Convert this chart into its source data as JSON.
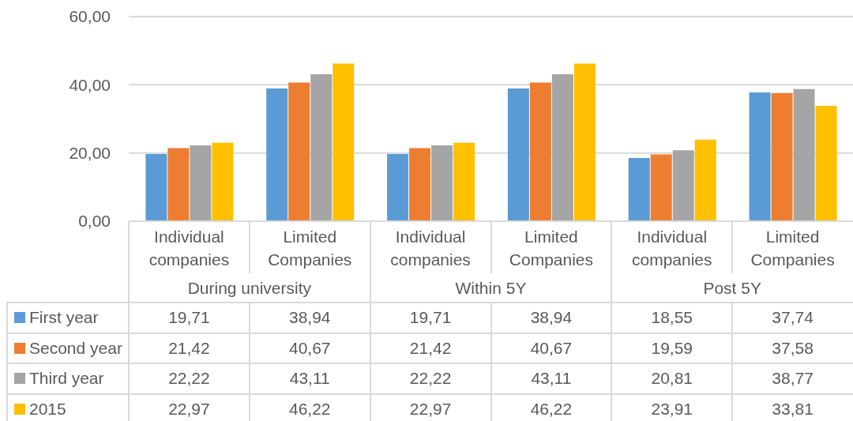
{
  "chart_data": {
    "type": "bar",
    "categories": [
      "Individual companies",
      "Limited Companies",
      "Individual companies",
      "Limited Companies",
      "Individual companies",
      "Limited Companies"
    ],
    "series": [
      {
        "name": "First year",
        "color": "#5b9bd5",
        "values": [
          19.71,
          38.94,
          19.71,
          38.94,
          18.55,
          37.74
        ],
        "value_labels": [
          "19,71",
          "38,94",
          "19,71",
          "38,94",
          "18,55",
          "37,74"
        ]
      },
      {
        "name": "Second year",
        "color": "#ed7d31",
        "values": [
          21.42,
          40.67,
          21.42,
          40.67,
          19.59,
          37.58
        ],
        "value_labels": [
          "21,42",
          "40,67",
          "21,42",
          "40,67",
          "19,59",
          "37,58"
        ]
      },
      {
        "name": "Third year",
        "color": "#a5a5a5",
        "values": [
          22.22,
          43.11,
          22.22,
          43.11,
          20.81,
          38.77
        ],
        "value_labels": [
          "22,22",
          "43,11",
          "22,22",
          "43,11",
          "20,81",
          "38,77"
        ]
      },
      {
        "name": "2015",
        "color": "#ffc000",
        "values": [
          22.97,
          46.22,
          22.97,
          46.22,
          23.91,
          33.81
        ],
        "value_labels": [
          "22,97",
          "46,22",
          "22,97",
          "46,22",
          "23,91",
          "33,81"
        ]
      }
    ],
    "annotations": [
      "During university",
      "Within 5Y",
      "Post 5Y"
    ],
    "ylim": [
      0,
      60
    ],
    "yticks": [
      {
        "value": 0,
        "label": "0,00"
      },
      {
        "value": 20,
        "label": "20,00"
      },
      {
        "value": 40,
        "label": "40,00"
      },
      {
        "value": 60,
        "label": "60,00"
      }
    ],
    "grid": "y",
    "legend": "bottom"
  }
}
